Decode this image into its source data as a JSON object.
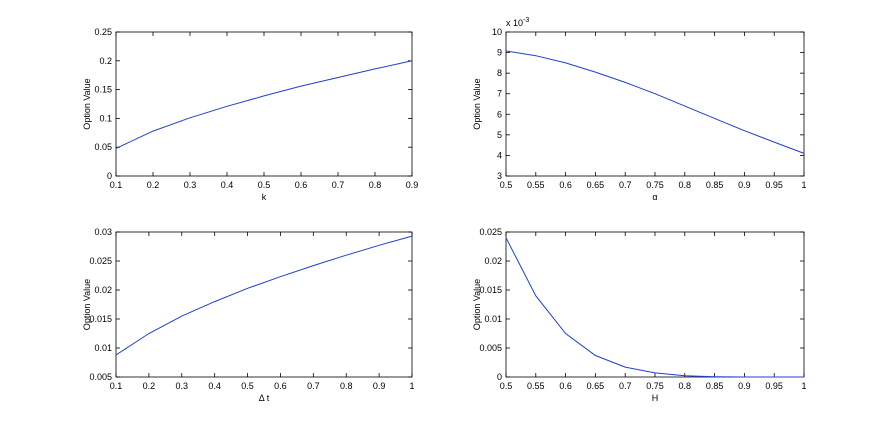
{
  "chart_data": [
    {
      "type": "line",
      "xlabel": "k",
      "ylabel": "Option Value",
      "xlim": [
        0.1,
        0.9
      ],
      "ylim": [
        0,
        0.25
      ],
      "x_ticks": [
        "0.1",
        "0.2",
        "0.3",
        "0.4",
        "0.5",
        "0.6",
        "0.7",
        "0.8",
        "0.9"
      ],
      "y_ticks": [
        "0",
        "0.05",
        "0.1",
        "0.15",
        "0.2",
        "0.25"
      ],
      "grid": false,
      "series": [
        {
          "color": "#1f3fd0",
          "x": [
            0.1,
            0.2,
            0.3,
            0.4,
            0.5,
            0.6,
            0.7,
            0.8,
            0.9
          ],
          "y": [
            0.048,
            0.078,
            0.101,
            0.121,
            0.139,
            0.156,
            0.171,
            0.186,
            0.2
          ]
        }
      ]
    },
    {
      "type": "line",
      "xlabel": "α",
      "ylabel": "Option Value",
      "multiplier": "x 10",
      "multiplier_exp": "-3",
      "xlim": [
        0.5,
        1
      ],
      "ylim": [
        3,
        10
      ],
      "x_ticks": [
        "0.5",
        "0.55",
        "0.6",
        "0.65",
        "0.7",
        "0.75",
        "0.8",
        "0.85",
        "0.9",
        "0.95",
        "1"
      ],
      "y_ticks": [
        "3",
        "4",
        "5",
        "6",
        "7",
        "8",
        "9",
        "10"
      ],
      "grid": false,
      "series": [
        {
          "color": "#1f3fd0",
          "x": [
            0.5,
            0.55,
            0.6,
            0.65,
            0.7,
            0.75,
            0.8,
            0.85,
            0.9,
            0.95,
            1.0
          ],
          "y": [
            9.08,
            8.85,
            8.5,
            8.05,
            7.55,
            7.0,
            6.4,
            5.8,
            5.2,
            4.65,
            4.1
          ]
        }
      ]
    },
    {
      "type": "line",
      "xlabel": "Δ t",
      "ylabel": "Option Value",
      "xlim": [
        0.1,
        1
      ],
      "ylim": [
        0.005,
        0.03
      ],
      "x_ticks": [
        "0.1",
        "0.2",
        "0.3",
        "0.4",
        "0.5",
        "0.6",
        "0.7",
        "0.8",
        "0.9",
        "1"
      ],
      "y_ticks": [
        "0.005",
        "0.01",
        "0.015",
        "0.02",
        "0.025",
        "0.03"
      ],
      "grid": false,
      "series": [
        {
          "color": "#1f3fd0",
          "x": [
            0.1,
            0.2,
            0.3,
            0.4,
            0.5,
            0.6,
            0.7,
            0.8,
            0.9,
            1.0
          ],
          "y": [
            0.0088,
            0.0125,
            0.0155,
            0.018,
            0.0203,
            0.0223,
            0.0242,
            0.026,
            0.0277,
            0.0293
          ]
        }
      ]
    },
    {
      "type": "line",
      "xlabel": "H",
      "ylabel": "Option Value",
      "xlim": [
        0.5,
        1
      ],
      "ylim": [
        0,
        0.025
      ],
      "x_ticks": [
        "0.5",
        "0.55",
        "0.6",
        "0.65",
        "0.7",
        "0.75",
        "0.8",
        "0.85",
        "0.9",
        "0.95",
        "1"
      ],
      "y_ticks": [
        "0",
        "0.005",
        "0.01",
        "0.015",
        "0.02",
        "0.025"
      ],
      "grid": false,
      "series": [
        {
          "color": "#1f3fd0",
          "x": [
            0.5,
            0.55,
            0.6,
            0.65,
            0.7,
            0.75,
            0.8,
            0.85,
            0.9,
            0.95,
            1.0
          ],
          "y": [
            0.024,
            0.014,
            0.0075,
            0.0037,
            0.0017,
            0.0007,
            0.0002,
            5e-05,
            0.0,
            0.0,
            0.0
          ]
        }
      ]
    }
  ]
}
